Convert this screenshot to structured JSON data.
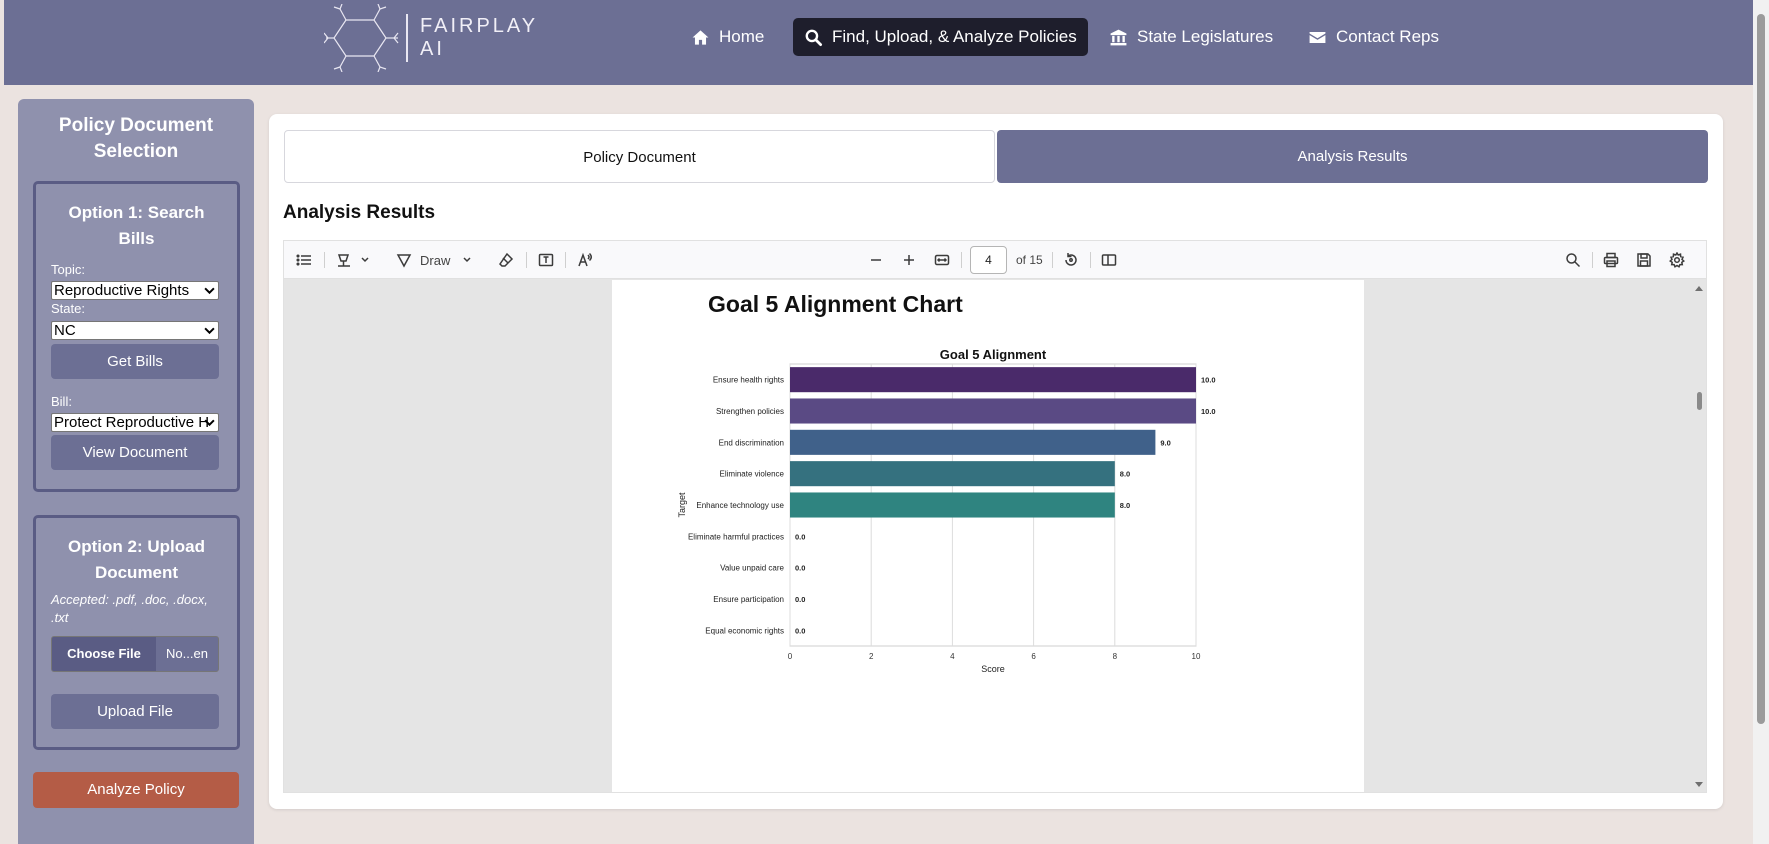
{
  "header": {
    "logo_line1": "FAIRPLAY",
    "logo_line2": "AI",
    "nav": [
      {
        "label": "Home",
        "icon": "home-icon"
      },
      {
        "label": "Find, Upload, & Analyze Policies",
        "icon": "search-icon",
        "active": true
      },
      {
        "label": "State Legislatures",
        "icon": "building-icon"
      },
      {
        "label": "Contact Reps",
        "icon": "envelope-icon"
      }
    ]
  },
  "sidebar": {
    "title": "Policy Document Selection",
    "option1": {
      "title": "Option 1: Search Bills",
      "topic_label": "Topic:",
      "topic_value": "Reproductive Rights",
      "state_label": "State:",
      "state_value": "NC",
      "get_bills_label": "Get Bills",
      "bill_label": "Bill:",
      "bill_value": "Protect Reproductive H",
      "view_document_label": "View Document"
    },
    "option2": {
      "title": "Option 2: Upload Document",
      "accepted": "Accepted: .pdf, .doc, .docx, .txt",
      "choose_file_label": "Choose File",
      "file_name": "No...en",
      "upload_label": "Upload File"
    },
    "analyze_label": "Analyze Policy"
  },
  "main": {
    "tabs": [
      {
        "label": "Policy Document",
        "active": false
      },
      {
        "label": "Analysis Results",
        "active": true
      }
    ],
    "section_title": "Analysis Results"
  },
  "viewer": {
    "toolbar": {
      "draw_label": "Draw",
      "page_number": "4",
      "page_total": "of 15"
    },
    "page_heading": "Goal 5 Alignment Chart"
  },
  "colors": {
    "header_bg": "#6c6f94",
    "sidebar_bg": "#8f91ad",
    "analyze_btn": "#b45c46",
    "active_nav": "#1e1e2c"
  },
  "chart_data": {
    "type": "bar",
    "orientation": "horizontal",
    "title": "Goal 5 Alignment",
    "xlabel": "Score",
    "ylabel": "Target",
    "xlim": [
      0,
      10
    ],
    "xticks": [
      "0",
      "2",
      "4",
      "6",
      "8",
      "10"
    ],
    "categories": [
      "Ensure health rights",
      "Strengthen policies",
      "End discrimination",
      "Eliminate violence",
      "Enhance technology use",
      "Eliminate harmful practices",
      "Value unpaid care",
      "Ensure participation",
      "Equal economic rights"
    ],
    "values": [
      10.0,
      10.0,
      9.0,
      8.0,
      8.0,
      0.0,
      0.0,
      0.0,
      0.0
    ],
    "value_labels": [
      "10.0",
      "10.0",
      "9.0",
      "8.0",
      "8.0",
      "0.0",
      "0.0",
      "0.0",
      "0.0"
    ],
    "colors": [
      "#4a2a6a",
      "#5a4a84",
      "#40618a",
      "#35717f",
      "#2f8480",
      "#2f8480",
      "#2f8480",
      "#2f8480",
      "#2f8480"
    ],
    "grid": true
  }
}
